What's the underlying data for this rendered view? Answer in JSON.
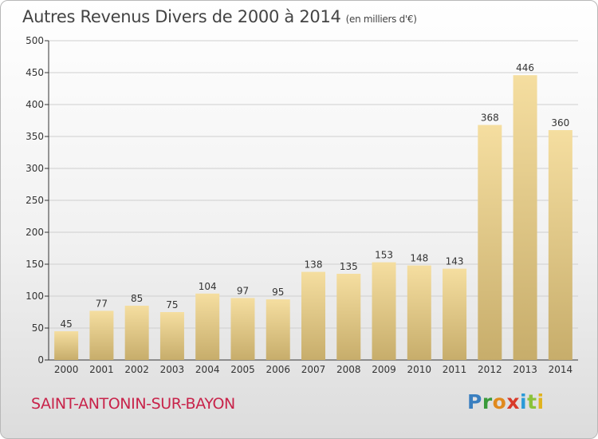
{
  "title": "Autres Revenus Divers de 2000 à 2014",
  "title_unit": "(en milliers d'€)",
  "place_name": "SAINT-ANTONIN-SUR-BAYON",
  "logo_text": [
    "P",
    "r",
    "o",
    "x",
    "i",
    "t",
    "i"
  ],
  "colors": {
    "bar_light": "#f5dea0",
    "bar_dark": "#c7ad6b",
    "grid": "#cfcfcf",
    "axis": "#333333",
    "place": "#c8234a"
  },
  "chart_data": {
    "type": "bar",
    "title": "Autres Revenus Divers de 2000 à 2014",
    "subtitle": "(en milliers d'€)",
    "xlabel": "",
    "ylabel": "",
    "categories": [
      "2000",
      "2001",
      "2002",
      "2003",
      "2004",
      "2005",
      "2006",
      "2007",
      "2008",
      "2009",
      "2010",
      "2011",
      "2012",
      "2013",
      "2014"
    ],
    "values": [
      45,
      77,
      85,
      75,
      104,
      97,
      95,
      138,
      135,
      153,
      148,
      143,
      368,
      446,
      360
    ],
    "ylim": [
      0,
      500
    ],
    "yticks": [
      0,
      50,
      100,
      150,
      200,
      250,
      300,
      350,
      400,
      450,
      500
    ],
    "grid": true,
    "legend": "none"
  }
}
